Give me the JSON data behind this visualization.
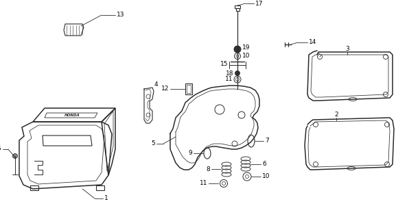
{
  "bg_color": "#ffffff",
  "line_color": "#2a2a2a",
  "lw_main": 1.1,
  "lw_inner": 0.55,
  "lw_label": 0.6,
  "fontsize": 6.5
}
